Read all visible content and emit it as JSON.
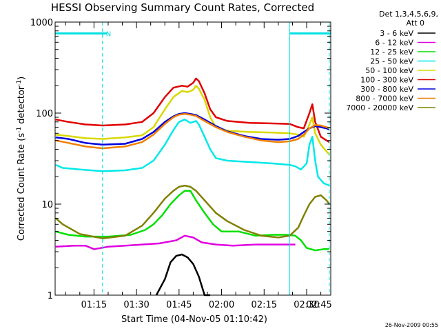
{
  "chart_data": {
    "type": "line",
    "title": "HESSI Observing Summary Count Rates, Corrected",
    "xlabel": "Start Time (04-Nov-05 01:10:42)",
    "ylabel": "Corrected Count Rate (s⁻¹ detector⁻¹)",
    "ylabel_parts": {
      "main": "Corrected Count Rate (s",
      "sup1": "-1",
      "mid": " detector",
      "sup2": "-1",
      "end": ")"
    },
    "x_range_minutes": [
      1.3,
      98.5
    ],
    "x_ticks": [
      {
        "min": 15,
        "label": "01:15"
      },
      {
        "min": 30,
        "label": "01:30"
      },
      {
        "min": 45,
        "label": "01:45"
      },
      {
        "min": 60,
        "label": "02:00"
      },
      {
        "min": 75,
        "label": "02:15"
      },
      {
        "min": 90,
        "label": "02:30"
      },
      {
        "min": 105,
        "label": "02:45"
      }
    ],
    "y_scale": "log",
    "ylim": [
      1,
      1000
    ],
    "y_ticks": [
      {
        "value": 1,
        "label": "1"
      },
      {
        "value": 10,
        "label": "10"
      },
      {
        "value": 100,
        "label": "100"
      },
      {
        "value": 1000,
        "label": "1000"
      }
    ],
    "legend_header": [
      "Det 1,3,4,5,6,9,",
      "Att 0"
    ],
    "legend_placement": "right",
    "annotations": {
      "night_marker": "N",
      "timestamp": "26-Nov-2009 00:55",
      "state_bars": [
        {
          "start_min": 1.3,
          "end_min": 19.5,
          "y": 750
        },
        {
          "start_min": 84,
          "end_min": 98.5,
          "y": 750
        }
      ],
      "state_lines": [
        {
          "min": 18.0,
          "style": "dashed"
        },
        {
          "min": 84.0,
          "style": "solid"
        },
        {
          "min": 98.0,
          "style": "dashed"
        }
      ]
    },
    "series": [
      {
        "name": "3 - 6 keV",
        "color": "#000000",
        "points": [
          [
            37,
            1
          ],
          [
            40,
            1.5
          ],
          [
            42,
            2.3
          ],
          [
            44,
            2.7
          ],
          [
            46,
            2.8
          ],
          [
            48,
            2.6
          ],
          [
            50,
            2.2
          ],
          [
            52,
            1.6
          ],
          [
            54,
            1
          ],
          [
            56,
            1
          ]
        ]
      },
      {
        "name": "6 - 12 keV",
        "color": "#e000e0",
        "points": [
          [
            1.5,
            3.4
          ],
          [
            8,
            3.5
          ],
          [
            12,
            3.5
          ],
          [
            15,
            3.2
          ],
          [
            20,
            3.4
          ],
          [
            26,
            3.5
          ],
          [
            32,
            3.6
          ],
          [
            38,
            3.7
          ],
          [
            44,
            4.0
          ],
          [
            47,
            4.5
          ],
          [
            50,
            4.3
          ],
          [
            53,
            3.8
          ],
          [
            58,
            3.6
          ],
          [
            64,
            3.5
          ],
          [
            72,
            3.6
          ],
          [
            80,
            3.6
          ],
          [
            86,
            3.6
          ]
        ]
      },
      {
        "name": "12 - 25 keV",
        "color": "#00e000",
        "points": [
          [
            1.5,
            5
          ],
          [
            6,
            4.6
          ],
          [
            12,
            4.4
          ],
          [
            20,
            4.4
          ],
          [
            28,
            4.6
          ],
          [
            33,
            5.2
          ],
          [
            36,
            6
          ],
          [
            39,
            7.5
          ],
          [
            42,
            10
          ],
          [
            45,
            12.5
          ],
          [
            47,
            14
          ],
          [
            49,
            14
          ],
          [
            51,
            11
          ],
          [
            54,
            8
          ],
          [
            57,
            6
          ],
          [
            60,
            5
          ],
          [
            66,
            5
          ],
          [
            72,
            4.5
          ],
          [
            78,
            4.6
          ],
          [
            83,
            4.6
          ],
          [
            86,
            4.5
          ],
          [
            88,
            4
          ],
          [
            90,
            3.3
          ],
          [
            93,
            3.1
          ],
          [
            96,
            3.2
          ],
          [
            98,
            3.2
          ]
        ]
      },
      {
        "name": "25 - 50 keV",
        "color": "#00e8e8",
        "points": [
          [
            1.5,
            27
          ],
          [
            4,
            25
          ],
          [
            10,
            24
          ],
          [
            18,
            23
          ],
          [
            26,
            23.5
          ],
          [
            32,
            25
          ],
          [
            36,
            30
          ],
          [
            40,
            45
          ],
          [
            43,
            65
          ],
          [
            45,
            80
          ],
          [
            47,
            85
          ],
          [
            49,
            78
          ],
          [
            51,
            82
          ],
          [
            52,
            75
          ],
          [
            54,
            55
          ],
          [
            56,
            40
          ],
          [
            58,
            32
          ],
          [
            62,
            30
          ],
          [
            70,
            29
          ],
          [
            78,
            28
          ],
          [
            84,
            27
          ],
          [
            86,
            26
          ],
          [
            88,
            24
          ],
          [
            90,
            28
          ],
          [
            91,
            45
          ],
          [
            92,
            55
          ],
          [
            93,
            30
          ],
          [
            94,
            20
          ],
          [
            96,
            17
          ],
          [
            98,
            16
          ]
        ]
      },
      {
        "name": "50 - 100 keV",
        "color": "#d8d800",
        "points": [
          [
            1.5,
            58
          ],
          [
            6,
            56
          ],
          [
            12,
            53
          ],
          [
            18,
            52
          ],
          [
            26,
            54
          ],
          [
            32,
            57
          ],
          [
            36,
            70
          ],
          [
            40,
            110
          ],
          [
            43,
            150
          ],
          [
            46,
            175
          ],
          [
            48,
            170
          ],
          [
            50,
            180
          ],
          [
            51,
            200
          ],
          [
            52,
            185
          ],
          [
            54,
            140
          ],
          [
            56,
            90
          ],
          [
            58,
            70
          ],
          [
            62,
            64
          ],
          [
            70,
            62
          ],
          [
            78,
            61
          ],
          [
            84,
            60
          ],
          [
            87,
            58
          ],
          [
            89,
            55
          ],
          [
            91,
            75
          ],
          [
            92,
            90
          ],
          [
            93,
            60
          ],
          [
            95,
            45
          ],
          [
            97,
            38
          ],
          [
            98,
            35
          ]
        ]
      },
      {
        "name": "100 - 300 keV",
        "color": "#e00000",
        "points": [
          [
            1.5,
            85
          ],
          [
            6,
            80
          ],
          [
            12,
            75
          ],
          [
            18,
            73
          ],
          [
            26,
            75
          ],
          [
            32,
            80
          ],
          [
            36,
            100
          ],
          [
            40,
            150
          ],
          [
            43,
            190
          ],
          [
            46,
            200
          ],
          [
            48,
            195
          ],
          [
            50,
            215
          ],
          [
            51,
            240
          ],
          [
            52,
            225
          ],
          [
            54,
            165
          ],
          [
            56,
            110
          ],
          [
            58,
            90
          ],
          [
            62,
            82
          ],
          [
            70,
            78
          ],
          [
            78,
            77
          ],
          [
            84,
            76
          ],
          [
            87,
            70
          ],
          [
            89,
            68
          ],
          [
            91,
            100
          ],
          [
            92,
            125
          ],
          [
            93,
            80
          ],
          [
            95,
            55
          ],
          [
            97,
            50
          ],
          [
            98,
            48
          ]
        ]
      },
      {
        "name": "300 - 800 keV",
        "color": "#0000e0",
        "points": [
          [
            1.5,
            54
          ],
          [
            6,
            52
          ],
          [
            12,
            47
          ],
          [
            18,
            45
          ],
          [
            26,
            46
          ],
          [
            32,
            52
          ],
          [
            36,
            62
          ],
          [
            40,
            80
          ],
          [
            43,
            92
          ],
          [
            45,
            98
          ],
          [
            47,
            100
          ],
          [
            49,
            98
          ],
          [
            51,
            95
          ],
          [
            54,
            85
          ],
          [
            58,
            72
          ],
          [
            62,
            63
          ],
          [
            68,
            56
          ],
          [
            74,
            52
          ],
          [
            80,
            51
          ],
          [
            84,
            52
          ],
          [
            87,
            56
          ],
          [
            89,
            62
          ],
          [
            91,
            68
          ],
          [
            93,
            72
          ],
          [
            95,
            70
          ],
          [
            97,
            68
          ],
          [
            98,
            66
          ]
        ]
      },
      {
        "name": "800 - 7000 keV",
        "color": "#f08000",
        "points": [
          [
            1.5,
            50
          ],
          [
            6,
            47
          ],
          [
            12,
            43
          ],
          [
            18,
            41
          ],
          [
            26,
            43
          ],
          [
            32,
            48
          ],
          [
            36,
            58
          ],
          [
            40,
            76
          ],
          [
            43,
            90
          ],
          [
            45,
            96
          ],
          [
            47,
            98
          ],
          [
            49,
            96
          ],
          [
            51,
            93
          ],
          [
            54,
            82
          ],
          [
            58,
            70
          ],
          [
            62,
            62
          ],
          [
            68,
            55
          ],
          [
            74,
            50
          ],
          [
            80,
            48
          ],
          [
            84,
            49
          ],
          [
            87,
            52
          ],
          [
            89,
            58
          ],
          [
            91,
            68
          ],
          [
            93,
            74
          ],
          [
            95,
            73
          ],
          [
            97,
            70
          ],
          [
            98,
            68
          ]
        ]
      },
      {
        "name": "7000 - 20000 keV",
        "color": "#808000",
        "points": [
          [
            1.5,
            7
          ],
          [
            4,
            6
          ],
          [
            10,
            4.7
          ],
          [
            18,
            4.2
          ],
          [
            26,
            4.5
          ],
          [
            32,
            5.8
          ],
          [
            36,
            8
          ],
          [
            40,
            11.5
          ],
          [
            43,
            14
          ],
          [
            45,
            15.5
          ],
          [
            47,
            16
          ],
          [
            49,
            15.5
          ],
          [
            51,
            14
          ],
          [
            54,
            11
          ],
          [
            58,
            8
          ],
          [
            62,
            6.5
          ],
          [
            68,
            5.2
          ],
          [
            74,
            4.5
          ],
          [
            80,
            4.3
          ],
          [
            84,
            4.5
          ],
          [
            87,
            5.5
          ],
          [
            89,
            7.5
          ],
          [
            91,
            10
          ],
          [
            93,
            12
          ],
          [
            95,
            12.5
          ],
          [
            97,
            11
          ],
          [
            98,
            10
          ]
        ]
      }
    ]
  }
}
